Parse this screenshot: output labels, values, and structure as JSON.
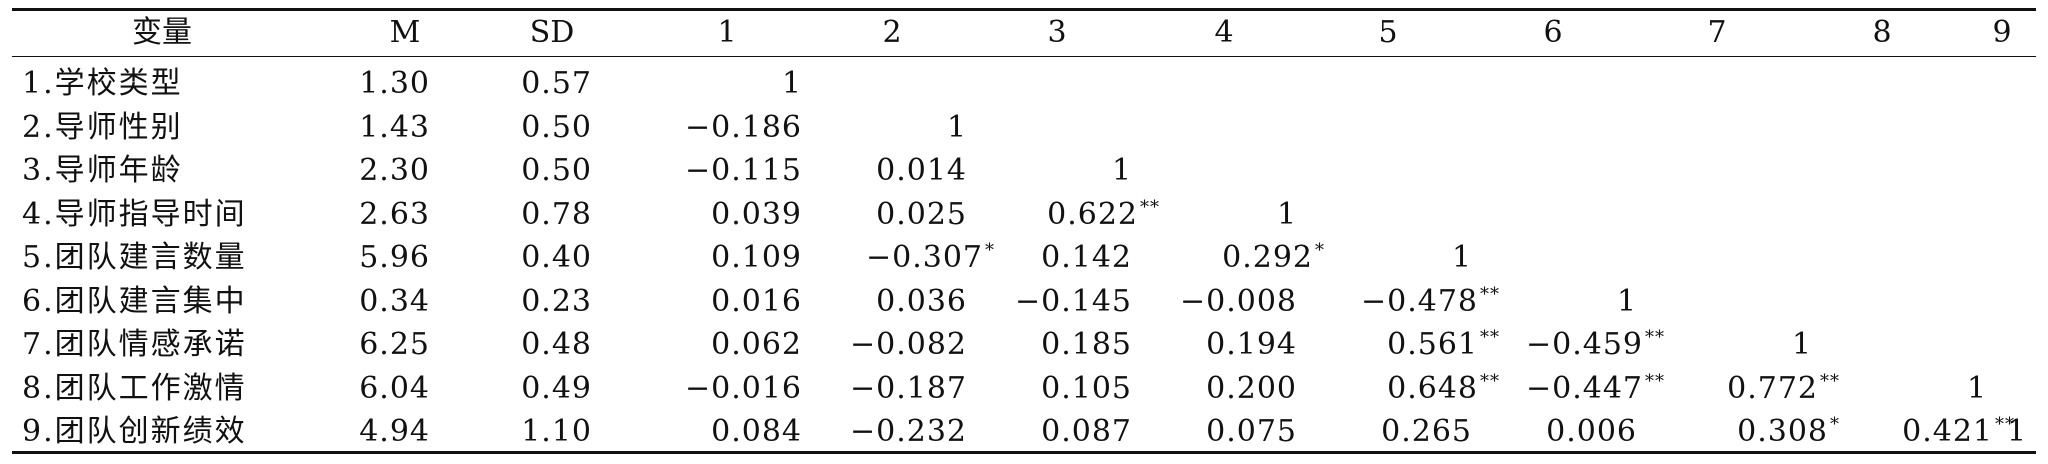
{
  "table": {
    "headers": [
      "变量",
      "M",
      "SD",
      "1",
      "2",
      "3",
      "4",
      "5",
      "6",
      "7",
      "8",
      "9"
    ],
    "rows": [
      {
        "label": "1.学校类型",
        "cells": [
          "1.30",
          "0.57",
          "1"
        ]
      },
      {
        "label": "2.导师性别",
        "cells": [
          "1.43",
          "0.50",
          "−0.186",
          "1"
        ]
      },
      {
        "label": "3.导师年龄",
        "cells": [
          "2.30",
          "0.50",
          "−0.115",
          "0.014",
          "1"
        ]
      },
      {
        "label": "4.导师指导时间",
        "cells": [
          "2.63",
          "0.78",
          "0.039",
          "0.025",
          "0.622**",
          "1"
        ]
      },
      {
        "label": "5.团队建言数量",
        "cells": [
          "5.96",
          "0.40",
          "0.109",
          "−0.307*",
          "0.142",
          "0.292*",
          "1"
        ]
      },
      {
        "label": "6.团队建言集中",
        "cells": [
          "0.34",
          "0.23",
          "0.016",
          "0.036",
          "−0.145",
          "−0.008",
          "−0.478**",
          "1"
        ]
      },
      {
        "label": "7.团队情感承诺",
        "cells": [
          "6.25",
          "0.48",
          "0.062",
          "−0.082",
          "0.185",
          "0.194",
          "0.561**",
          "−0.459**",
          "1"
        ]
      },
      {
        "label": "8.团队工作激情",
        "cells": [
          "6.04",
          "0.49",
          "−0.016",
          "−0.187",
          "0.105",
          "0.200",
          "0.648**",
          "−0.447**",
          "0.772**",
          "1"
        ]
      },
      {
        "label": "9.团队创新绩效",
        "cells": [
          "4.94",
          "1.10",
          "0.084",
          "−0.232",
          "0.087",
          "0.075",
          "0.265",
          "0.006",
          "0.308*",
          "0.421**",
          "1"
        ]
      }
    ]
  }
}
